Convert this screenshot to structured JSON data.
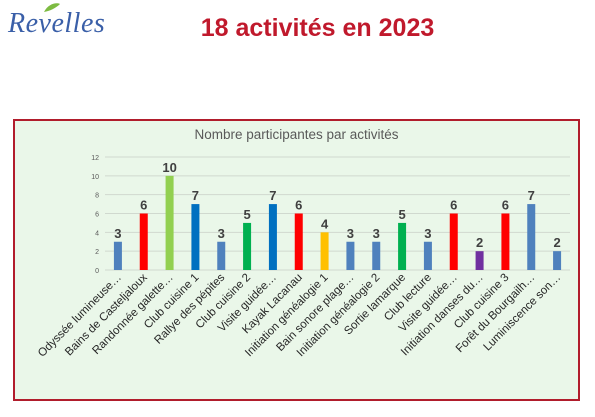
{
  "header": {
    "logo_text": "Revelles",
    "title": "18 activités en 2023"
  },
  "colors": {
    "title_red": "#c0192c",
    "panel_bg": "#eaf7e9",
    "panel_border": "#b11d2c"
  },
  "chart_data": {
    "type": "bar",
    "title": "Nombre participantes par activités",
    "xlabel": "",
    "ylabel": "",
    "ylim": [
      0,
      12
    ],
    "yticks": [
      0,
      2,
      4,
      6,
      8,
      10,
      12
    ],
    "grid": true,
    "legend": "none",
    "categories": [
      "Odyssée lumineuse…",
      "Bains de Casteljaloux",
      "Randonnée galette…",
      "Club cuisine 1",
      "Rallye des pépites",
      "Club cuisine 2",
      "Visite guidée…",
      "Kayak Lacanau",
      "Initiation généalogie 1",
      "Bain sonore plage…",
      "Initiation généalogie 2",
      "Sortie lamarque",
      "Club lecture",
      "Visite guidée…",
      "Initiation danses du…",
      "Club cuisine 3",
      "Forêt du Bourgailh…",
      "Luminiscence son…"
    ],
    "values": [
      3,
      6,
      10,
      7,
      3,
      5,
      7,
      6,
      4,
      3,
      3,
      5,
      3,
      6,
      2,
      6,
      7,
      2
    ],
    "bar_colors": [
      "#4f81bd",
      "#ff0000",
      "#92d050",
      "#0070c0",
      "#4f81bd",
      "#00b050",
      "#0070c0",
      "#ff0000",
      "#ffc000",
      "#4f81bd",
      "#4f81bd",
      "#00b050",
      "#4f81bd",
      "#ff0000",
      "#7030a0",
      "#ff0000",
      "#4f81bd",
      "#4f81bd"
    ]
  }
}
